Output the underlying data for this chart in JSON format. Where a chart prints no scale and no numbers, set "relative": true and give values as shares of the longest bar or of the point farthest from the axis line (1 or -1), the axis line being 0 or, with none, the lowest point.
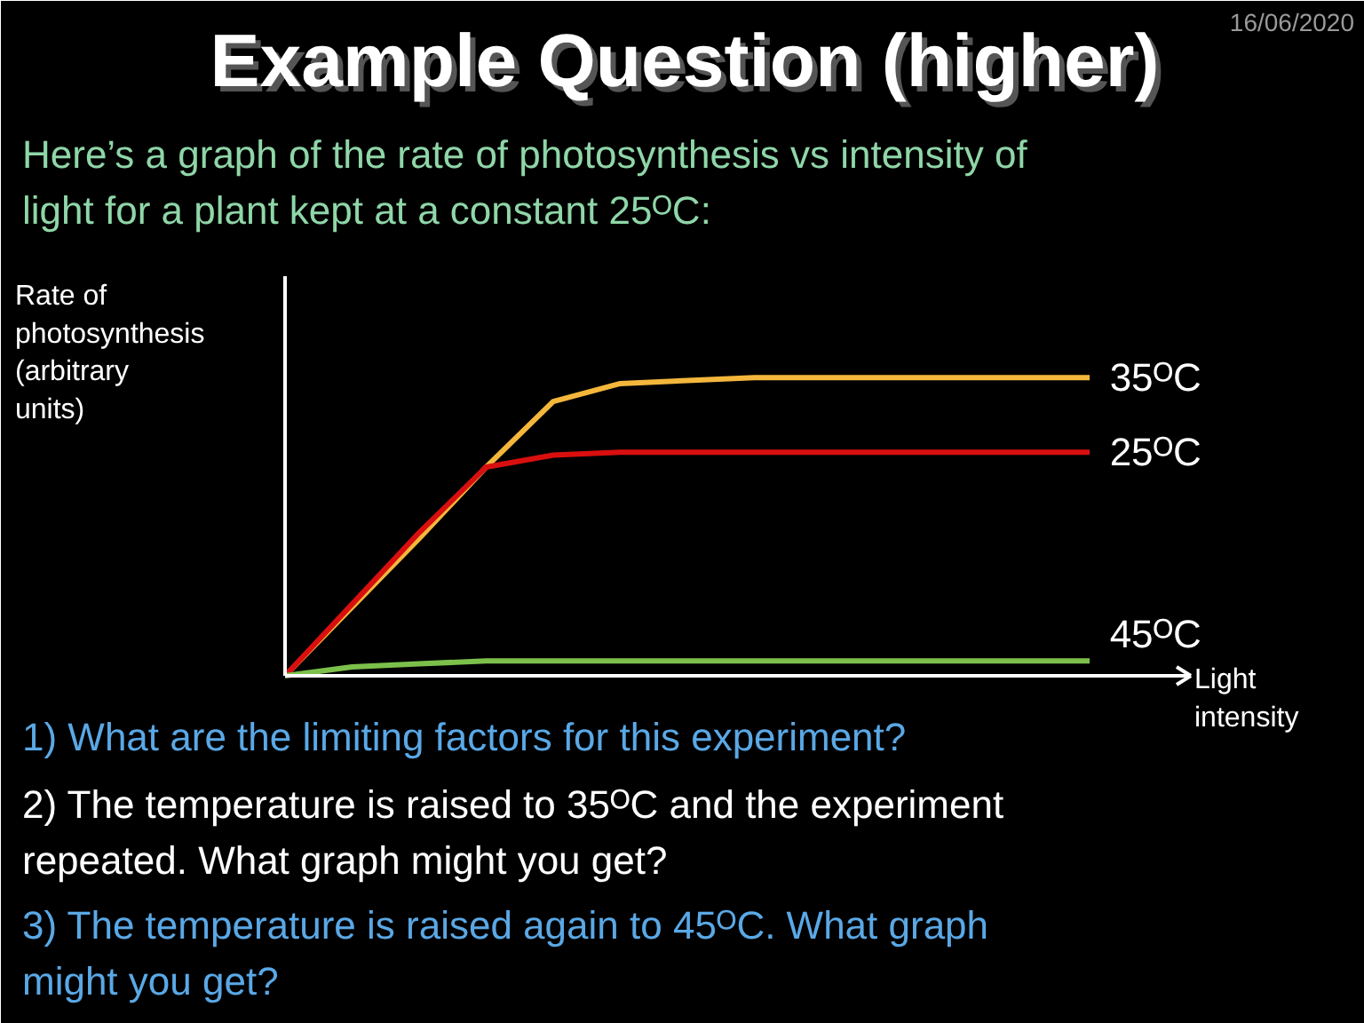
{
  "chart_data": {
    "type": "line",
    "title": "Example Question (higher)",
    "subtitle": "Here’s a graph of the rate of photosynthesis vs intensity of\nlight for a plant kept at a constant 25ᴼC:",
    "xlabel": "Light\nintensity",
    "ylabel": "Rate of\nphotosynthesis\n(arbitrary\nunits)",
    "relative": true,
    "grid": false,
    "categories": [
      null,
      null,
      null,
      null,
      null,
      null,
      null,
      null,
      null,
      null,
      null,
      null,
      null
    ],
    "series": [
      {
        "name": "35ᴼC",
        "color": "#f4b73c",
        "values": [
          0,
          0.23,
          0.46,
          0.7,
          0.92,
          0.98,
          0.99,
          1,
          1,
          1,
          1,
          1,
          1
        ]
      },
      {
        "name": "25ᴼC",
        "color": "#d90f0f",
        "values": [
          0,
          0.24,
          0.48,
          0.7,
          0.74,
          0.75,
          0.75,
          0.75,
          0.75,
          0.75,
          0.75,
          0.75,
          0.75
        ]
      },
      {
        "name": "45ᴼC",
        "color": "#7cc04b",
        "values": [
          0,
          0.03,
          0.04,
          0.05,
          0.05,
          0.05,
          0.05,
          0.05,
          0.05,
          0.05,
          0.05,
          0.05,
          0.05
        ]
      }
    ],
    "annotations": [
      "16/06/2020",
      "1)  What are the limiting factors for this experiment?",
      "2)  The temperature is raised to 35ᴼC and the experiment\n     repeated.  What graph might you get?",
      "3)  The temperature is raised again to 45ᴼC.  What graph\n     might you get?"
    ]
  }
}
